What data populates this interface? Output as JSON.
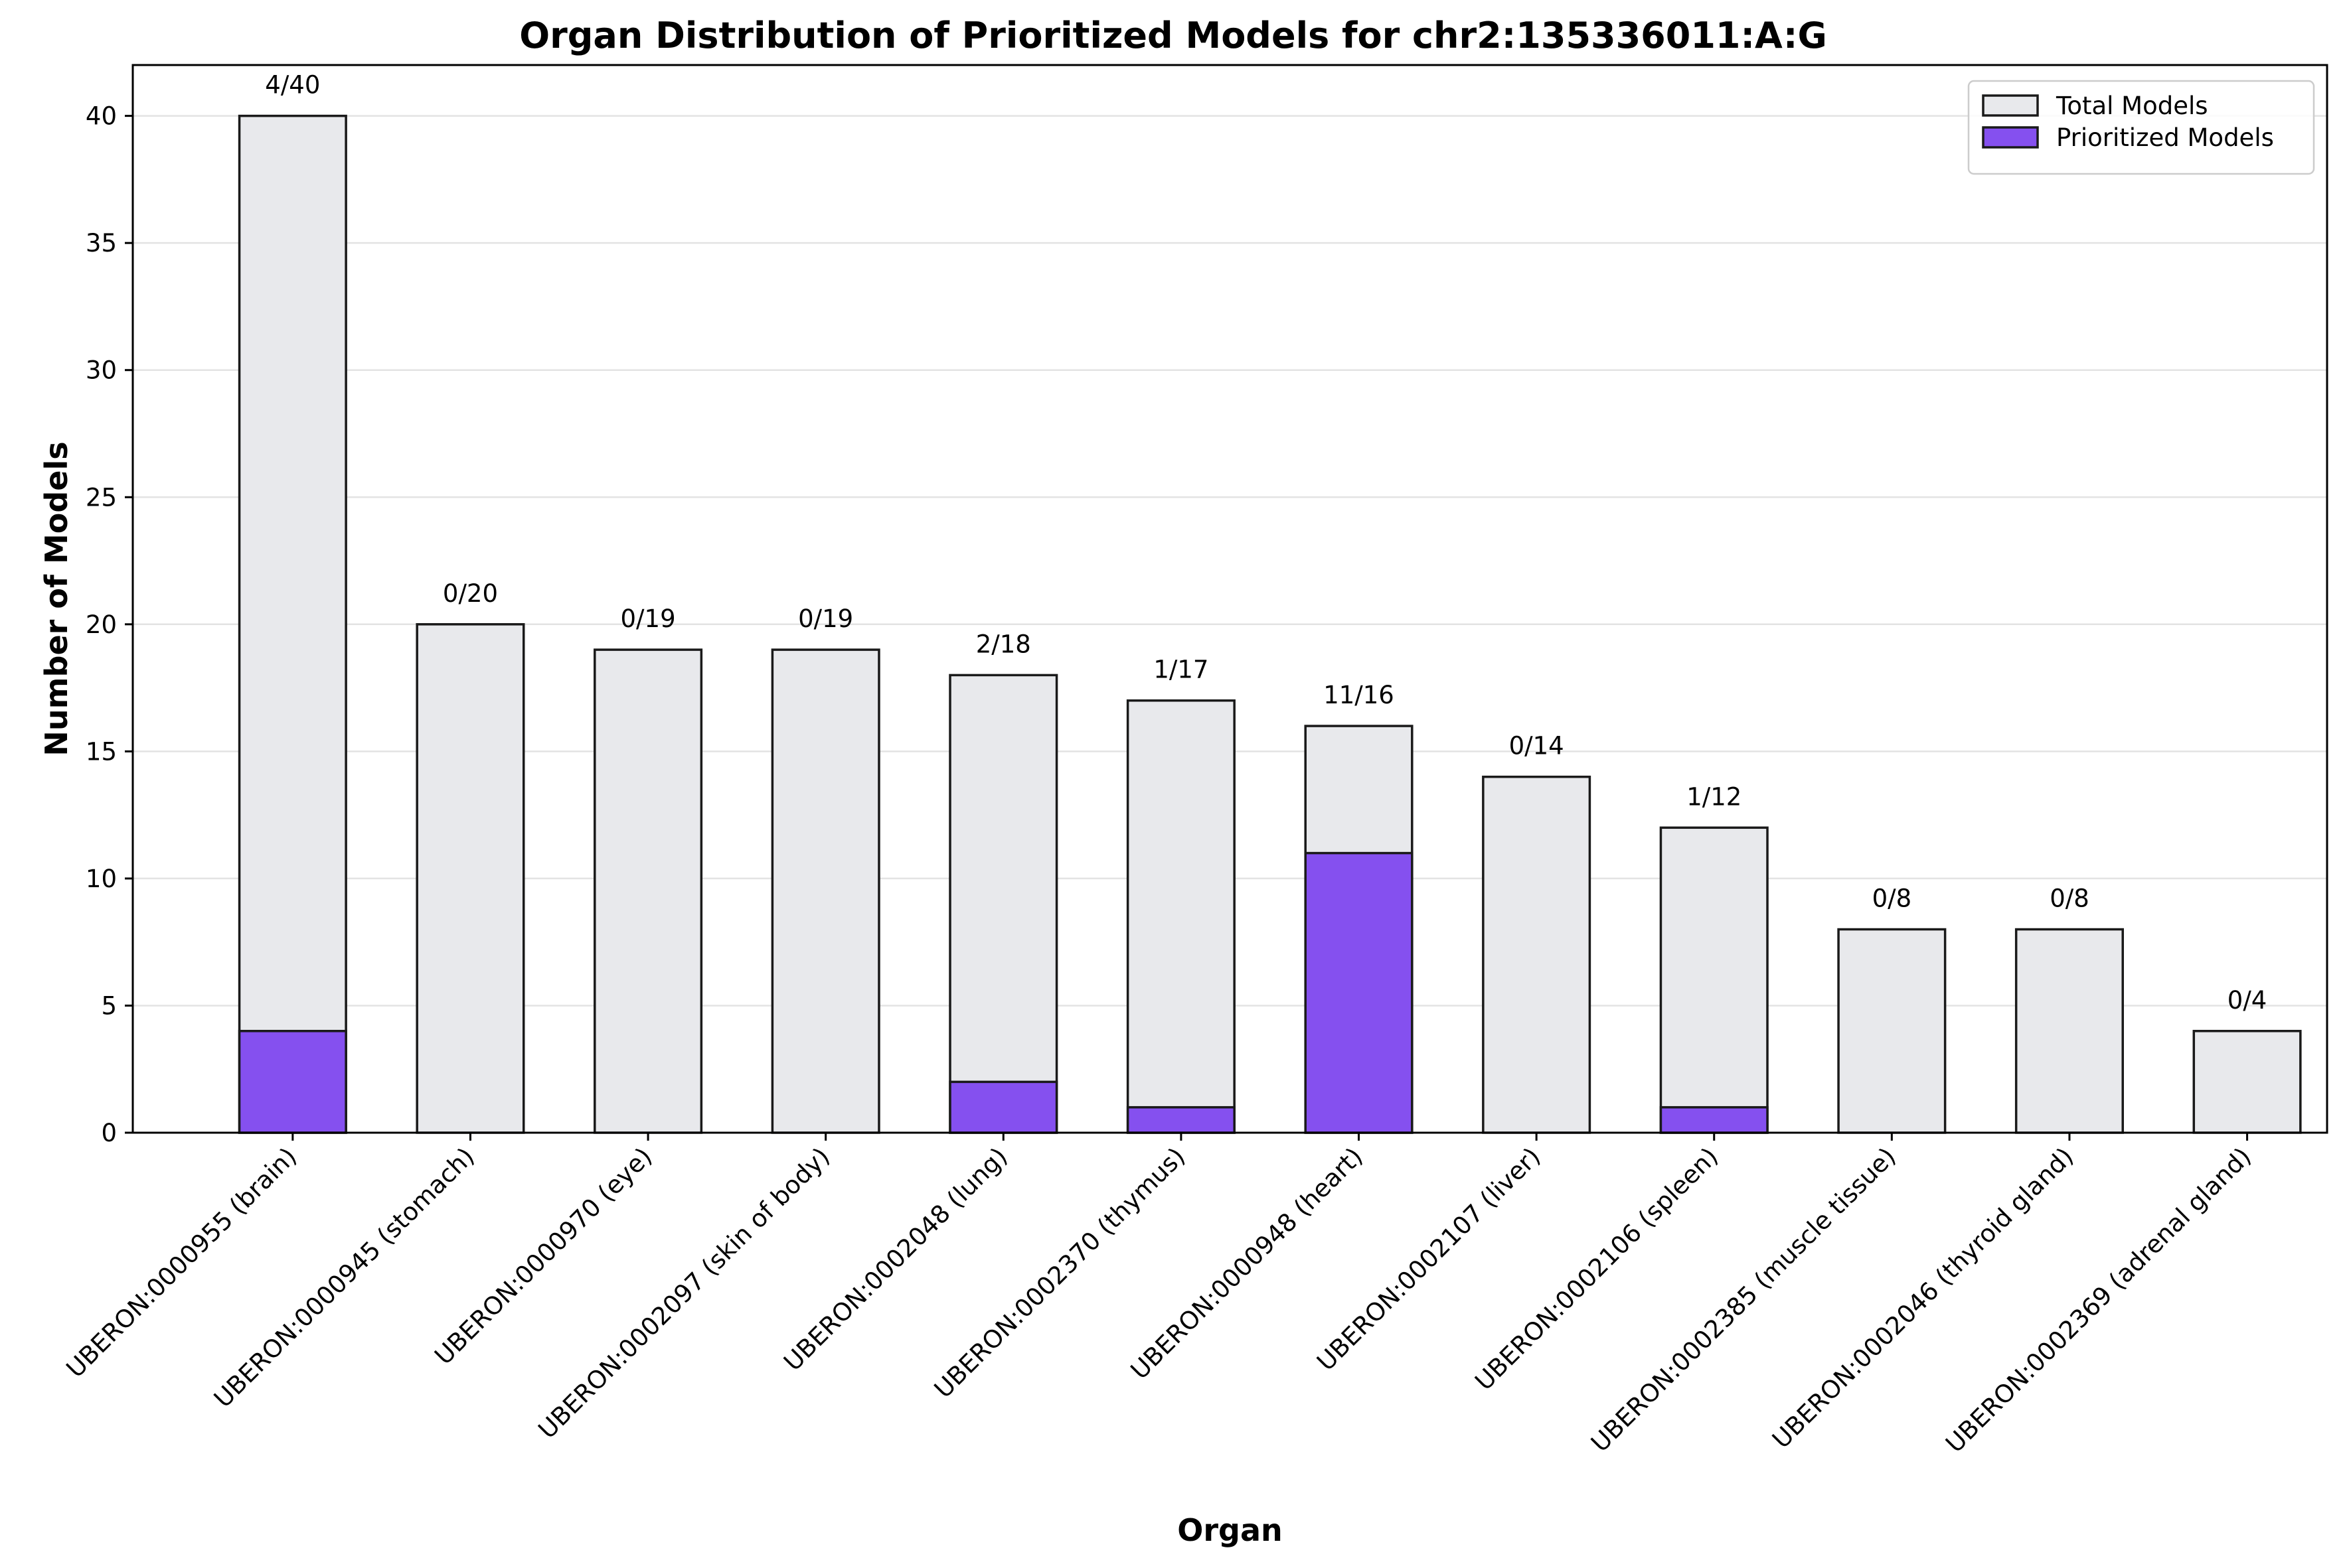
{
  "chart_data": {
    "type": "bar",
    "stacked_overlay": true,
    "title": "Organ Distribution of Prioritized Models for chr2:135336011:A:G",
    "xlabel": "Organ",
    "ylabel": "Number of Models",
    "ylim": [
      0,
      42
    ],
    "yticks": [
      0,
      5,
      10,
      15,
      20,
      25,
      30,
      35,
      40
    ],
    "grid": "y",
    "legend_position": "top-right",
    "categories": [
      "UBERON:0000955 (brain)",
      "UBERON:0000945 (stomach)",
      "UBERON:0000970 (eye)",
      "UBERON:0002097 (skin of body)",
      "UBERON:0002048 (lung)",
      "UBERON:0002370 (thymus)",
      "UBERON:0000948 (heart)",
      "UBERON:0002107 (liver)",
      "UBERON:0002106 (spleen)",
      "UBERON:0002385 (muscle tissue)",
      "UBERON:0002046 (thyroid gland)",
      "UBERON:0002369 (adrenal gland)"
    ],
    "series": [
      {
        "name": "Total Models",
        "color": "#e8e9ec",
        "values": [
          40,
          20,
          19,
          19,
          18,
          17,
          16,
          14,
          12,
          8,
          8,
          4
        ]
      },
      {
        "name": "Prioritized Models",
        "color": "#8550ef",
        "values": [
          4,
          0,
          0,
          0,
          2,
          1,
          11,
          0,
          1,
          0,
          0,
          0
        ]
      }
    ],
    "data_labels": [
      "4/40",
      "0/20",
      "0/19",
      "0/19",
      "2/18",
      "1/17",
      "11/16",
      "0/14",
      "1/12",
      "0/8",
      "0/8",
      "0/4"
    ]
  }
}
